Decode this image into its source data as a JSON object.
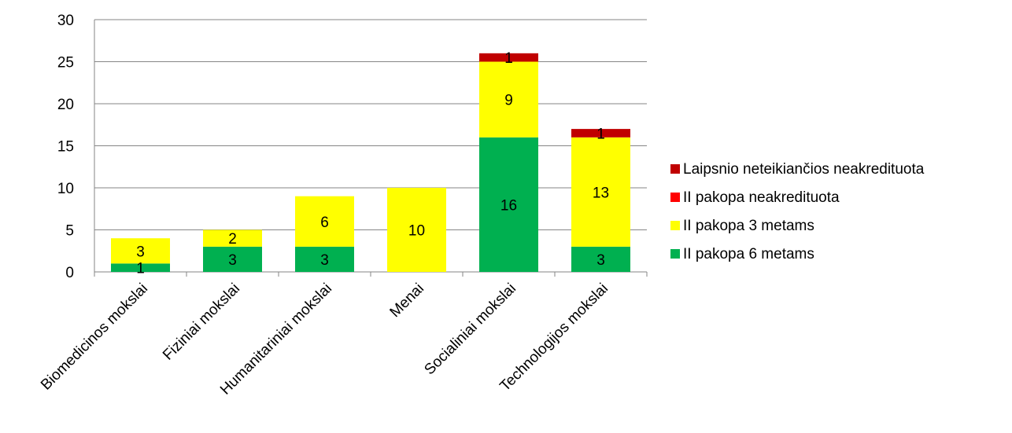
{
  "chart_data": {
    "type": "bar",
    "stacked": true,
    "categories": [
      "Biomedicinos mokslai",
      "Fiziniai mokslai",
      "Humanitariniai mokslai",
      "Menai",
      "Socialiniai mokslai",
      "Technologijos mokslai"
    ],
    "series": [
      {
        "name": "II pakopa 6 metams",
        "color": "#00b050",
        "values": [
          1,
          3,
          3,
          0,
          16,
          3
        ]
      },
      {
        "name": "II pakopa 3 metams",
        "color": "#ffff00",
        "values": [
          3,
          2,
          6,
          10,
          9,
          13
        ]
      },
      {
        "name": "II pakopa neakredituota",
        "color": "#ff0000",
        "values": [
          0,
          0,
          0,
          0,
          0,
          0
        ]
      },
      {
        "name": "Laipsnio neteikiančios neakredituota",
        "color": "#c00000",
        "values": [
          0,
          0,
          0,
          0,
          1,
          1
        ]
      }
    ],
    "ylim": [
      0,
      30
    ],
    "yticks": [
      0,
      5,
      10,
      15,
      20,
      25,
      30
    ],
    "grid": true,
    "legend": "right",
    "title": "",
    "xlabel": "",
    "ylabel": ""
  }
}
